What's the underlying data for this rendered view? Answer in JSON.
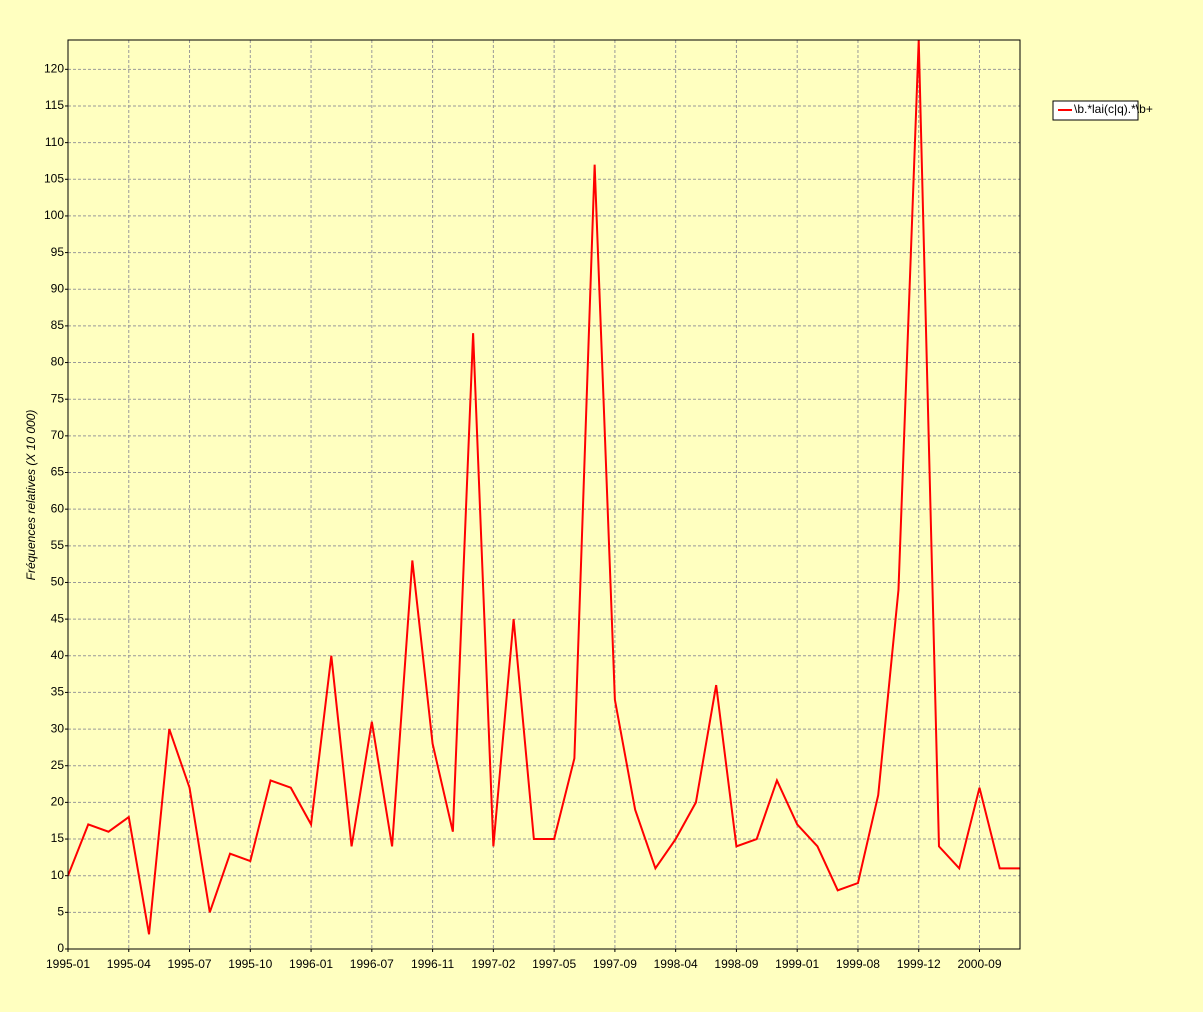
{
  "chart_data": {
    "type": "line",
    "y_label": "Fréquences relatives (X 10 000)",
    "categories": [
      "1995-01",
      null,
      null,
      "1995-04",
      null,
      null,
      "1995-07",
      null,
      null,
      "1995-10",
      null,
      null,
      "1996-01",
      null,
      null,
      "1996-07",
      null,
      null,
      "1996-11",
      null,
      null,
      "1997-02",
      null,
      null,
      "1997-05",
      null,
      null,
      "1997-09",
      null,
      null,
      "1998-04",
      null,
      null,
      "1998-09",
      null,
      null,
      "1999-01",
      null,
      null,
      "1999-08",
      null,
      null,
      "1999-12",
      null,
      null,
      "2000-09",
      null,
      null
    ],
    "series": [
      {
        "name": "\\b.*lai(c|q).*\\b+",
        "color": "#ff0000",
        "values": [
          10,
          17,
          16,
          18,
          2,
          30,
          22,
          5,
          13,
          12,
          23,
          22,
          17,
          40,
          14,
          31,
          14,
          53,
          28,
          16,
          84,
          14,
          45,
          15,
          15,
          26,
          107,
          34,
          19,
          11,
          15,
          20,
          36,
          14,
          15,
          23,
          17,
          14,
          8,
          9,
          21,
          49,
          124,
          14,
          11,
          22,
          11,
          11
        ]
      }
    ],
    "ylim": [
      0,
      124
    ],
    "yticks": [
      0,
      5,
      10,
      15,
      20,
      25,
      30,
      35,
      40,
      45,
      50,
      55,
      60,
      65,
      70,
      75,
      80,
      85,
      90,
      95,
      100,
      105,
      110,
      115,
      120
    ],
    "grid": true,
    "legend": "top-right"
  }
}
